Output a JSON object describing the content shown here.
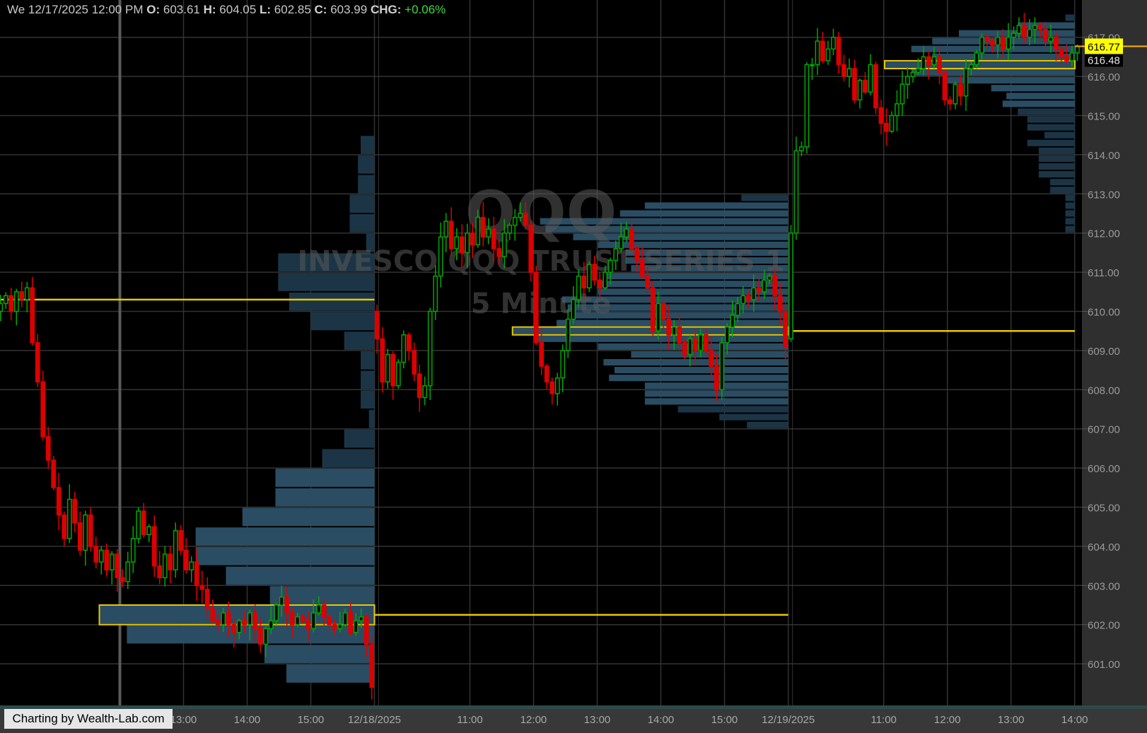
{
  "header": {
    "datetime": "We 12/17/2025 12:00 PM",
    "open_label": "O:",
    "open": "603.61",
    "high_label": "H:",
    "high": "604.05",
    "low_label": "L:",
    "low": "602.85",
    "close_label": "C:",
    "close": "603.99",
    "chg_label": "CHG:",
    "chg": "+0.06%"
  },
  "credit": "Charting by Wealth-Lab.com",
  "watermark": {
    "symbol": "QQQ",
    "name": "INVESCO QQQ TRUST SERIES 1",
    "interval": "5 Minute"
  },
  "colors": {
    "background": "#000000",
    "up": "#00a800",
    "down": "#dd0000",
    "profile": "#2a4d63",
    "profile_outer": "#1c3546",
    "poc": "#e8c800",
    "last_price": "#ffff00",
    "grid": "#333333"
  },
  "chart_data": {
    "type": "candlestick",
    "interval": "5 Minute",
    "ylim": [
      600.0,
      617.8
    ],
    "y_ticks": [
      "601.00",
      "602.00",
      "603.00",
      "604.00",
      "605.00",
      "606.00",
      "607.00",
      "608.00",
      "609.00",
      "610.00",
      "611.00",
      "612.00",
      "613.00",
      "614.00",
      "615.00",
      "616.00",
      "617.00"
    ],
    "x_ticks": [
      {
        "day": 0,
        "time": "13:00",
        "label": "13:00"
      },
      {
        "day": 0,
        "time": "14:00",
        "label": "14:00"
      },
      {
        "day": 0,
        "time": "15:00",
        "label": "15:00"
      },
      {
        "day": 1,
        "time": "09:30",
        "label": "12/18/2025"
      },
      {
        "day": 1,
        "time": "11:00",
        "label": "11:00"
      },
      {
        "day": 1,
        "time": "12:00",
        "label": "12:00"
      },
      {
        "day": 1,
        "time": "13:00",
        "label": "13:00"
      },
      {
        "day": 1,
        "time": "14:00",
        "label": "14:00"
      },
      {
        "day": 1,
        "time": "15:00",
        "label": "15:00"
      },
      {
        "day": 2,
        "time": "09:30",
        "label": "12/19/2025"
      },
      {
        "day": 2,
        "time": "11:00",
        "label": "11:00"
      },
      {
        "day": 2,
        "time": "12:00",
        "label": "12:00"
      },
      {
        "day": 2,
        "time": "13:00",
        "label": "13:00"
      },
      {
        "day": 2,
        "time": "14:00",
        "label": "14:00"
      }
    ],
    "cursor": {
      "day": 0,
      "time": "12:00"
    },
    "last_price": "616.77",
    "last_price_secondary": "616.48",
    "days": [
      {
        "date": "12/17/2025",
        "first_bar": "10:05",
        "open": 610.0,
        "closes": [
          610.2,
          610.4,
          610.0,
          610.5,
          610.3,
          610.6,
          609.2,
          608.2,
          606.8,
          606.2,
          605.5,
          604.8,
          604.2,
          605.2,
          604.6,
          603.9,
          604.8,
          604.0,
          603.6,
          603.9,
          603.4,
          603.8,
          603.2,
          603.1,
          603.6,
          604.2,
          604.9,
          604.3,
          604.5,
          603.5,
          603.2,
          603.8,
          603.4,
          604.4,
          603.9,
          603.4,
          603.6,
          603.0,
          602.9,
          602.4,
          602.1,
          602.0,
          602.3,
          602.0,
          601.8,
          602.1,
          602.0,
          602.3,
          601.9,
          601.5,
          601.9,
          602.1,
          602.5,
          602.7,
          602.3,
          602.0,
          602.2,
          602.1,
          601.9,
          602.3,
          602.5,
          602.2,
          602.0,
          601.9,
          602.0,
          602.3,
          601.8,
          602.1,
          602.2,
          601.5,
          600.4
        ],
        "profile": {
          "bin": 0.5,
          "poc": 602.0,
          "rows": [
            [
              614.0,
              0.05,
              0
            ],
            [
              613.5,
              0.06,
              0
            ],
            [
              613.0,
              0.06,
              0
            ],
            [
              612.5,
              0.09,
              0
            ],
            [
              612.0,
              0.09,
              0
            ],
            [
              611.5,
              0.03,
              0
            ],
            [
              611.0,
              0.35,
              0
            ],
            [
              610.5,
              0.35,
              0
            ],
            [
              610.0,
              0.31,
              0
            ],
            [
              609.5,
              0.23,
              0
            ],
            [
              609.0,
              0.11,
              0
            ],
            [
              608.5,
              0.05,
              0
            ],
            [
              608.0,
              0.05,
              0
            ],
            [
              607.5,
              0.05,
              0
            ],
            [
              607.0,
              0.02,
              0
            ],
            [
              606.5,
              0.11,
              0
            ],
            [
              606.0,
              0.19,
              0
            ],
            [
              605.5,
              0.36,
              1
            ],
            [
              605.0,
              0.36,
              1
            ],
            [
              604.5,
              0.48,
              1
            ],
            [
              604.0,
              0.65,
              1
            ],
            [
              603.5,
              0.65,
              1
            ],
            [
              603.0,
              0.54,
              1
            ],
            [
              602.5,
              0.38,
              1
            ],
            [
              602.0,
              1.0,
              1
            ],
            [
              601.5,
              0.9,
              1
            ],
            [
              601.0,
              0.4,
              1
            ],
            [
              600.5,
              0.32,
              1
            ]
          ]
        },
        "level_line": 610.3
      },
      {
        "date": "12/18/2025",
        "first_bar": "09:30",
        "open": 610.0,
        "closes": [
          609.3,
          608.2,
          608.9,
          608.1,
          608.7,
          609.4,
          609.0,
          608.4,
          607.8,
          608.1,
          610.0,
          610.9,
          611.9,
          612.3,
          611.6,
          611.9,
          611.5,
          612.0,
          611.7,
          612.4,
          611.9,
          612.1,
          611.6,
          611.4,
          612.0,
          612.2,
          612.4,
          612.5,
          612.2,
          611.0,
          609.2,
          608.6,
          608.2,
          607.9,
          608.3,
          609.0,
          609.8,
          610.3,
          610.9,
          610.6,
          611.2,
          610.8,
          610.6,
          611.0,
          611.3,
          611.6,
          611.9,
          612.1,
          611.6,
          611.3,
          610.9,
          610.6,
          609.5,
          610.2,
          609.8,
          609.4,
          609.6,
          609.2,
          608.9,
          609.3,
          609.0,
          609.4,
          609.0,
          608.6,
          608.0,
          609.2,
          609.6,
          609.9,
          610.2,
          610.4,
          610.3,
          610.6,
          610.5,
          610.8,
          610.9,
          610.4,
          610.0,
          609.1
        ],
        "profile": {
          "bin": 0.2,
          "poc": 609.4,
          "rows": [
            [
              612.8,
              0.17,
              0
            ],
            [
              612.6,
              0.52,
              1
            ],
            [
              612.4,
              0.61,
              1
            ],
            [
              612.2,
              0.9,
              1
            ],
            [
              612.0,
              0.88,
              1
            ],
            [
              611.8,
              0.78,
              1
            ],
            [
              611.6,
              0.69,
              1
            ],
            [
              611.4,
              0.59,
              1
            ],
            [
              611.2,
              0.59,
              1
            ],
            [
              611.0,
              0.57,
              1
            ],
            [
              610.8,
              0.67,
              1
            ],
            [
              610.6,
              0.69,
              1
            ],
            [
              610.4,
              0.69,
              1
            ],
            [
              610.2,
              0.82,
              1
            ],
            [
              610.0,
              0.8,
              1
            ],
            [
              609.8,
              0.78,
              1
            ],
            [
              609.6,
              0.84,
              1
            ],
            [
              609.4,
              1.0,
              1
            ],
            [
              609.2,
              0.92,
              1
            ],
            [
              609.0,
              0.69,
              1
            ],
            [
              608.8,
              0.57,
              1
            ],
            [
              608.6,
              0.67,
              1
            ],
            [
              608.4,
              0.63,
              1
            ],
            [
              608.2,
              0.65,
              1
            ],
            [
              608.0,
              0.52,
              1
            ],
            [
              607.8,
              0.52,
              1
            ],
            [
              607.6,
              0.52,
              1
            ],
            [
              607.4,
              0.4,
              0
            ],
            [
              607.2,
              0.25,
              0
            ],
            [
              607.0,
              0.15,
              0
            ]
          ]
        },
        "level_line": 602.25
      },
      {
        "date": "12/19/2025",
        "first_bar": "09:30",
        "open": 609.3,
        "closes": [
          612.0,
          614.1,
          614.2,
          616.3,
          616.3,
          616.9,
          616.4,
          616.7,
          617.0,
          616.3,
          616.0,
          616.2,
          615.4,
          615.9,
          615.6,
          616.3,
          615.2,
          614.8,
          614.6,
          615.0,
          615.3,
          615.8,
          616.0,
          616.1,
          616.2,
          616.5,
          616.3,
          616.5,
          616.1,
          615.4,
          615.3,
          615.8,
          615.5,
          616.2,
          616.3,
          616.6,
          617.0,
          616.9,
          616.8,
          617.0,
          616.7,
          617.0,
          617.1,
          617.3,
          617.0,
          617.2,
          617.3,
          617.2,
          616.9,
          617.0,
          616.7,
          616.5,
          616.4,
          616.6,
          616.77
        ],
        "profile": {
          "bin": 0.2,
          "poc": 616.2,
          "rows": [
            [
              617.4,
              0.05,
              0
            ],
            [
              617.2,
              0.3,
              1
            ],
            [
              617.0,
              0.61,
              1
            ],
            [
              616.8,
              0.75,
              1
            ],
            [
              616.6,
              0.86,
              1
            ],
            [
              616.4,
              0.75,
              1
            ],
            [
              616.2,
              1.0,
              1
            ],
            [
              616.0,
              0.86,
              1
            ],
            [
              615.8,
              0.67,
              1
            ],
            [
              615.6,
              0.44,
              1
            ],
            [
              615.4,
              0.36,
              1
            ],
            [
              615.2,
              0.38,
              1
            ],
            [
              615.0,
              0.3,
              0
            ],
            [
              614.8,
              0.25,
              0
            ],
            [
              614.6,
              0.25,
              0
            ],
            [
              614.4,
              0.16,
              0
            ],
            [
              614.2,
              0.25,
              0
            ],
            [
              614.0,
              0.19,
              0
            ],
            [
              613.8,
              0.19,
              0
            ],
            [
              613.6,
              0.19,
              0
            ],
            [
              613.4,
              0.19,
              0
            ],
            [
              613.2,
              0.13,
              0
            ],
            [
              613.0,
              0.13,
              0
            ],
            [
              612.8,
              0.05,
              0
            ],
            [
              612.6,
              0.05,
              0
            ],
            [
              612.4,
              0.05,
              0
            ],
            [
              612.2,
              0.05,
              0
            ],
            [
              612.0,
              0.05,
              0
            ]
          ]
        },
        "level_line": 609.5
      }
    ]
  }
}
